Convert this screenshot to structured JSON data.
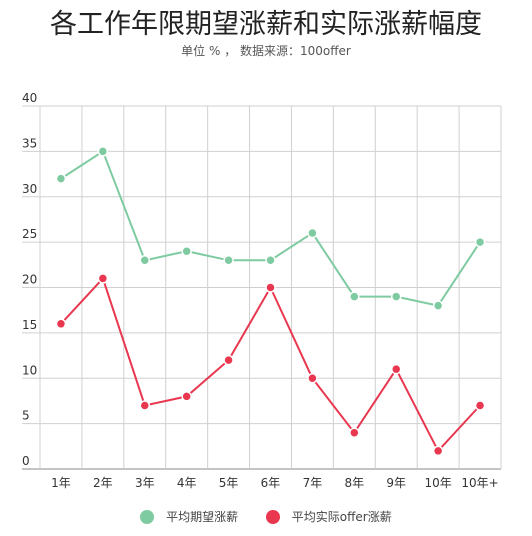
{
  "chart_data": {
    "type": "line",
    "title": "各工作年限期望涨薪和实际涨薪幅度",
    "subtitle": "单位 % ，  数据来源：100offer",
    "categories": [
      "1年",
      "2年",
      "3年",
      "4年",
      "5年",
      "6年",
      "7年",
      "8年",
      "9年",
      "10年",
      "10年+"
    ],
    "y_ticks": [
      "0",
      "5",
      "10",
      "15",
      "20",
      "25",
      "30",
      "35",
      "40"
    ],
    "ylim": [
      0,
      40
    ],
    "grid": true,
    "legend_position": "bottom",
    "series": [
      {
        "name": "平均期望涨薪",
        "color": "#7ecba1",
        "values": [
          32,
          35,
          23,
          24,
          23,
          23,
          26,
          19,
          19,
          18,
          25
        ]
      },
      {
        "name": "平均实际offer涨薪",
        "color": "#e8374f",
        "values": [
          16,
          21,
          7,
          8,
          12,
          20,
          10,
          4,
          11,
          2,
          7
        ]
      }
    ]
  }
}
